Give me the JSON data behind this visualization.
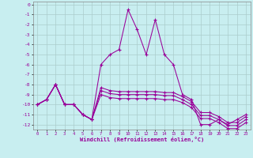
{
  "xlabel": "Windchill (Refroidissement éolien,°C)",
  "bg_color": "#c8eef0",
  "grid_color": "#aacccc",
  "line_color": "#990099",
  "xlim": [
    -0.5,
    23.5
  ],
  "ylim": [
    -12.5,
    0.3
  ],
  "yticks": [
    0,
    -1,
    -2,
    -3,
    -4,
    -5,
    -6,
    -7,
    -8,
    -9,
    -10,
    -11,
    -12
  ],
  "xticks": [
    0,
    1,
    2,
    3,
    4,
    5,
    6,
    7,
    8,
    9,
    10,
    11,
    12,
    13,
    14,
    15,
    16,
    17,
    18,
    19,
    20,
    21,
    22,
    23
  ],
  "series": [
    {
      "x": [
        0,
        1,
        2,
        3,
        4,
        5,
        6,
        7,
        8,
        9,
        10,
        11,
        12,
        13,
        14,
        15,
        16,
        17,
        18,
        19,
        20,
        21,
        22,
        23
      ],
      "y": [
        -10,
        -9.5,
        -8,
        -10,
        -10,
        -11,
        -11.5,
        -6,
        -5,
        -4.5,
        -0.5,
        -2.5,
        -5,
        -1.5,
        -5,
        -6,
        -9,
        -9.5,
        -12,
        -12,
        -11.5,
        -12,
        -11.5,
        -11
      ],
      "ls": "-"
    },
    {
      "x": [
        0,
        1,
        2,
        3,
        4,
        5,
        6,
        7,
        8,
        9,
        10,
        11,
        12,
        13,
        14,
        15,
        16,
        17,
        18,
        19,
        20,
        21,
        22,
        23
      ],
      "y": [
        -10,
        -9.5,
        -8,
        -10,
        -10,
        -11,
        -11.5,
        -8.3,
        -8.6,
        -8.7,
        -8.7,
        -8.7,
        -8.7,
        -8.7,
        -8.8,
        -8.8,
        -9.2,
        -9.7,
        -10.8,
        -10.8,
        -11.2,
        -11.8,
        -11.8,
        -11.2
      ],
      "ls": "-"
    },
    {
      "x": [
        0,
        1,
        2,
        3,
        4,
        5,
        6,
        7,
        8,
        9,
        10,
        11,
        12,
        13,
        14,
        15,
        16,
        17,
        18,
        19,
        20,
        21,
        22,
        23
      ],
      "y": [
        -10,
        -9.5,
        -8,
        -10,
        -10,
        -11,
        -11.5,
        -8.6,
        -8.9,
        -9.0,
        -9.0,
        -9.0,
        -9.0,
        -9.0,
        -9.1,
        -9.1,
        -9.5,
        -10.0,
        -11.1,
        -11.1,
        -11.5,
        -12.1,
        -12.1,
        -11.5
      ],
      "ls": "-"
    },
    {
      "x": [
        0,
        1,
        2,
        3,
        4,
        5,
        6,
        7,
        8,
        9,
        10,
        11,
        12,
        13,
        14,
        15,
        16,
        17,
        18,
        19,
        20,
        21,
        22,
        23
      ],
      "y": [
        -10,
        -9.5,
        -8,
        -10,
        -10,
        -11,
        -11.5,
        -9.0,
        -9.3,
        -9.4,
        -9.4,
        -9.4,
        -9.4,
        -9.4,
        -9.5,
        -9.5,
        -9.8,
        -10.3,
        -11.4,
        -11.4,
        -11.8,
        -12.4,
        -12.4,
        -11.8
      ],
      "ls": "-"
    }
  ]
}
